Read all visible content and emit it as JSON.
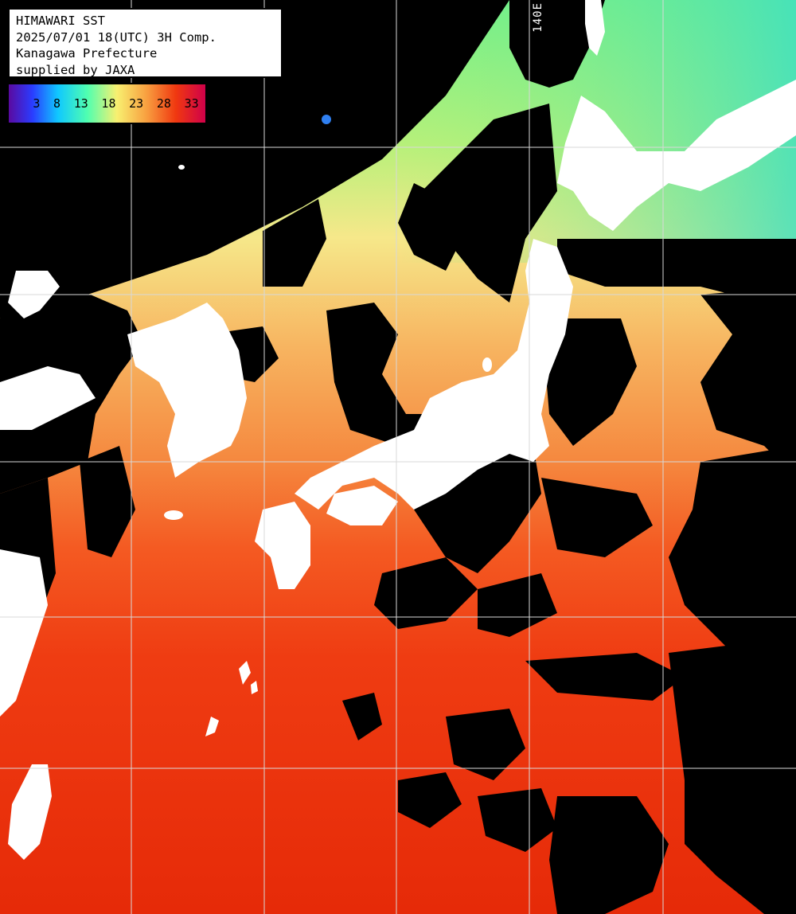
{
  "header": {
    "line1": "HIMAWARI SST",
    "line2": "2025/07/01 18(UTC) 3H Comp.",
    "line3": "Kanagawa Prefecture",
    "line4": "supplied by JAXA"
  },
  "colorbar": {
    "ticks": [
      "3",
      "8",
      "13",
      "18",
      "23",
      "28",
      "33"
    ]
  },
  "lon_label": "140E",
  "colors": {
    "land": "#ffffff",
    "cloud_no_data": "#000000",
    "grid": "#cfcfcf"
  }
}
